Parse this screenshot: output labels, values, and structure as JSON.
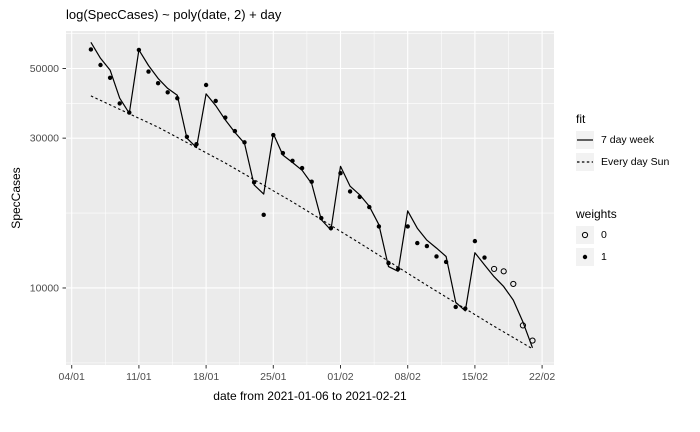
{
  "colors": {
    "panel_bg": "#EBEBEB",
    "grid_major": "#FFFFFF",
    "grid_minor": "#F5F5F5",
    "axis_text": "#4D4D4D",
    "tick_mark": "#333333",
    "line": "#000000",
    "legend_key_bg": "#F2F2F2",
    "background": "#FFFFFF"
  },
  "legend": {
    "fit": {
      "title": "fit",
      "items": [
        {
          "label": "7 day week",
          "style": "solid"
        },
        {
          "label": "Every day Sun",
          "style": "dashed"
        }
      ]
    },
    "weights": {
      "title": "weights",
      "items": [
        {
          "label": "0",
          "marker": "open-circle"
        },
        {
          "label": "1",
          "marker": "filled-circle"
        }
      ]
    }
  },
  "chart_data": {
    "type": "line",
    "subtype": "scatter+fitted-lines",
    "title": "log(SpecCases) ~ poly(date, 2) + day",
    "xlabel": "date from 2021-01-06 to 2021-02-21",
    "ylabel": "SpecCases",
    "y_scale": "log10",
    "x_range_dates": [
      "2021-01-06",
      "2021-02-21"
    ],
    "y_ticks": [
      {
        "label": "50000",
        "value": 50000
      },
      {
        "label": "30000",
        "value": 30000
      },
      {
        "label": "10000",
        "value": 10000
      }
    ],
    "y_minor": [
      64550,
      38730,
      17320,
      5774
    ],
    "x_ticks": [
      {
        "label": "04/01",
        "day": -2
      },
      {
        "label": "11/01",
        "day": 5
      },
      {
        "label": "18/01",
        "day": 12
      },
      {
        "label": "25/01",
        "day": 19
      },
      {
        "label": "01/02",
        "day": 26
      },
      {
        "label": "08/02",
        "day": 33
      },
      {
        "label": "15/02",
        "day": 40
      },
      {
        "label": "22/02",
        "day": 47
      }
    ],
    "x_minor_days": [
      1.5,
      8.5,
      15.5,
      22.5,
      29.5,
      36.5,
      43.5
    ],
    "grid": true,
    "legend_position": "right",
    "points": [
      [
        "2021-01-06",
        57500,
        1
      ],
      [
        "2021-01-07",
        51300,
        1
      ],
      [
        "2021-01-08",
        46700,
        1
      ],
      [
        "2021-01-09",
        38700,
        1
      ],
      [
        "2021-01-10",
        36200,
        1
      ],
      [
        "2021-01-11",
        57300,
        1
      ],
      [
        "2021-01-12",
        48900,
        1
      ],
      [
        "2021-01-13",
        44900,
        1
      ],
      [
        "2021-01-14",
        42000,
        1
      ],
      [
        "2021-01-15",
        40200,
        1
      ],
      [
        "2021-01-16",
        30300,
        1
      ],
      [
        "2021-01-17",
        28700,
        1
      ],
      [
        "2021-01-18",
        44300,
        1
      ],
      [
        "2021-01-19",
        39400,
        1
      ],
      [
        "2021-01-20",
        34900,
        1
      ],
      [
        "2021-01-21",
        31600,
        1
      ],
      [
        "2021-01-22",
        29100,
        1
      ],
      [
        "2021-01-23",
        21700,
        1
      ],
      [
        "2021-01-24",
        17100,
        1
      ],
      [
        "2021-01-25",
        30700,
        1
      ],
      [
        "2021-01-26",
        26900,
        1
      ],
      [
        "2021-01-27",
        25400,
        1
      ],
      [
        "2021-01-28",
        24100,
        1
      ],
      [
        "2021-01-29",
        21800,
        1
      ],
      [
        "2021-01-30",
        16700,
        1
      ],
      [
        "2021-01-31",
        15500,
        1
      ],
      [
        "2021-02-01",
        23200,
        1
      ],
      [
        "2021-02-02",
        20300,
        1
      ],
      [
        "2021-02-03",
        19500,
        1
      ],
      [
        "2021-02-04",
        18100,
        1
      ],
      [
        "2021-02-05",
        15700,
        1
      ],
      [
        "2021-02-06",
        12000,
        1
      ],
      [
        "2021-02-07",
        11500,
        1
      ],
      [
        "2021-02-08",
        15700,
        1
      ],
      [
        "2021-02-09",
        13900,
        1
      ],
      [
        "2021-02-10",
        13600,
        1
      ],
      [
        "2021-02-11",
        12600,
        1
      ],
      [
        "2021-02-12",
        12100,
        1
      ],
      [
        "2021-02-13",
        8700,
        1
      ],
      [
        "2021-02-14",
        8600,
        1
      ],
      [
        "2021-02-15",
        14100,
        1
      ],
      [
        "2021-02-16",
        12500,
        1
      ],
      [
        "2021-02-17",
        11500,
        0
      ],
      [
        "2021-02-18",
        11300,
        0
      ],
      [
        "2021-02-19",
        10300,
        0
      ],
      [
        "2021-02-20",
        7600,
        0
      ],
      [
        "2021-02-21",
        6800,
        0
      ]
    ],
    "series": [
      {
        "name": "7 day week",
        "style": "solid",
        "start_date": "2021-01-06",
        "values": [
          60600,
          53900,
          49400,
          40200,
          36000,
          57300,
          51100,
          46500,
          43200,
          41100,
          30000,
          28000,
          41500,
          38100,
          34300,
          31300,
          28900,
          21300,
          19900,
          31000,
          26500,
          25100,
          23700,
          21500,
          16500,
          15300,
          24400,
          21100,
          19800,
          18200,
          15900,
          11700,
          11300,
          17600,
          15500,
          14200,
          13400,
          12600,
          9000,
          8450,
          12950,
          11840,
          10860,
          10100,
          9150,
          7800,
          6450
        ]
      },
      {
        "name": "Every day Sun",
        "style": "dashed",
        "control_points": [
          [
            "2021-01-06",
            40900
          ],
          [
            "2021-01-13",
            32500
          ],
          [
            "2021-01-20",
            25000
          ],
          [
            "2021-01-27",
            18800
          ],
          [
            "2021-02-03",
            13900
          ],
          [
            "2021-02-10",
            10200
          ],
          [
            "2021-02-17",
            7550
          ],
          [
            "2021-02-21",
            6400
          ]
        ]
      }
    ]
  }
}
